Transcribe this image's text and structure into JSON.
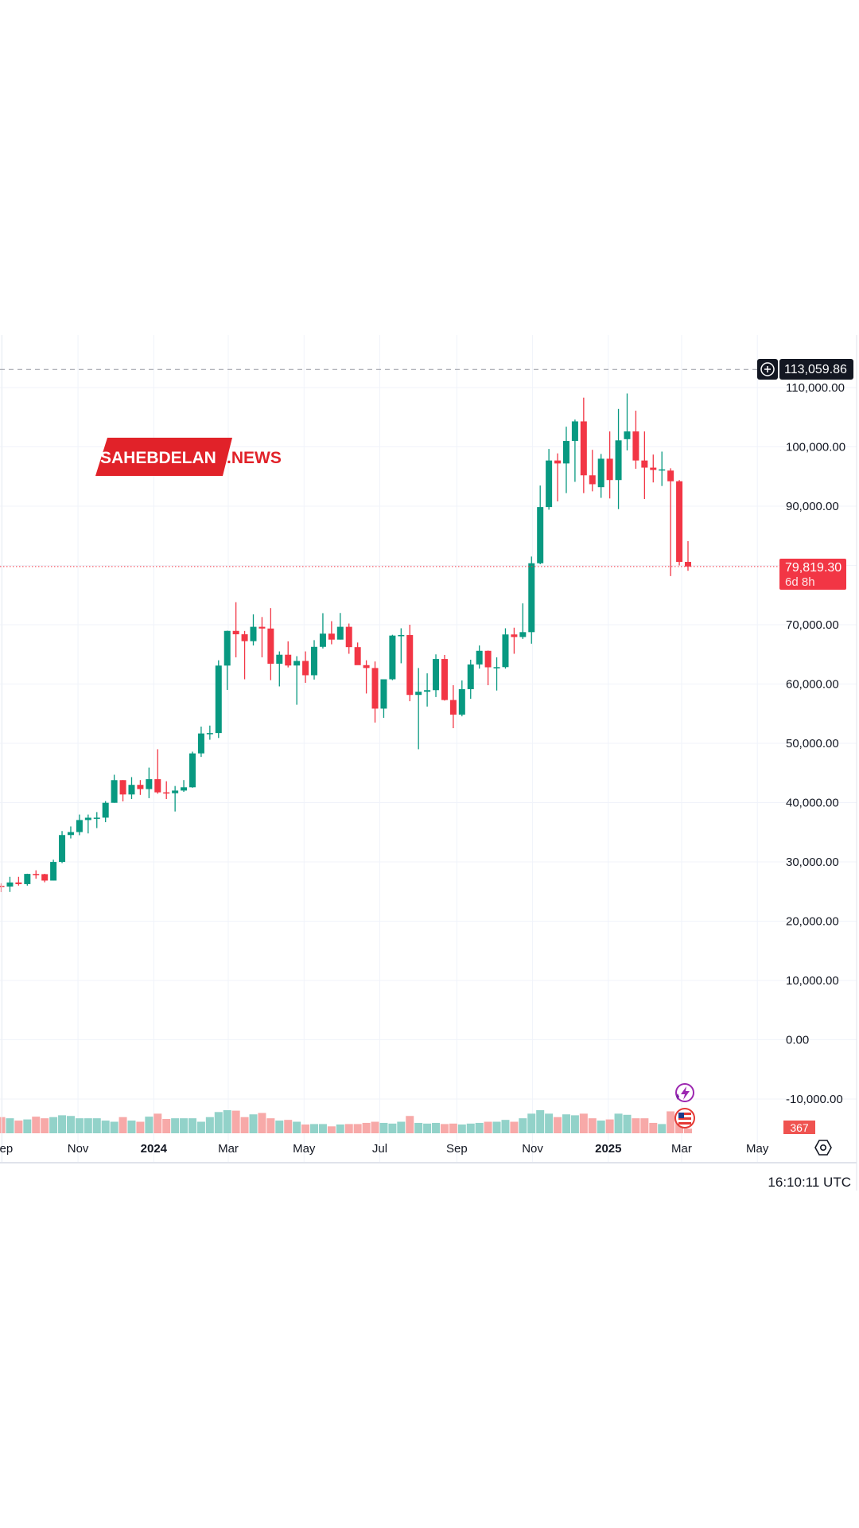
{
  "watermark": {
    "part1": "SAHEBDELAN",
    "part2": ".NEWS"
  },
  "colors": {
    "up": "#089981",
    "down": "#f23645",
    "up_volume": "#92d2c9",
    "down_volume": "#f7a9a8",
    "grid": "#f0f3fa",
    "accent_badge": "#f23645"
  },
  "price_line": {
    "high_label": "113,059.86",
    "high_value": 113059.86,
    "current_label": "79,819.30",
    "current_value": 79819.3,
    "countdown": "6d 8h"
  },
  "volume_label": "367",
  "timestamp": "16:10:11 UTC",
  "icons": [
    "plus-circle-icon",
    "lightning-icon",
    "us-flag-icon",
    "settings-icon"
  ],
  "chart_data": {
    "type": "candlestick",
    "title": "",
    "interval": "weekly",
    "ylim": [
      -15000,
      115000
    ],
    "y_ticks": [
      110000,
      100000,
      90000,
      80000,
      70000,
      60000,
      50000,
      40000,
      30000,
      20000,
      10000,
      0,
      -10000
    ],
    "y_tick_labels": [
      "110,000.00",
      "100,000.00",
      "90,000.00",
      "",
      "70,000.00",
      "60,000.00",
      "50,000.00",
      "40,000.00",
      "30,000.00",
      "20,000.00",
      "10,000.00",
      "0.00",
      "-10,000.00"
    ],
    "x_ticks": [
      {
        "date": "2023-09-01",
        "label": "Sep",
        "year": false
      },
      {
        "date": "2023-11-01",
        "label": "Nov",
        "year": false
      },
      {
        "date": "2024-01-01",
        "label": "2024",
        "year": true
      },
      {
        "date": "2024-03-01",
        "label": "Mar",
        "year": false
      },
      {
        "date": "2024-05-01",
        "label": "May",
        "year": false
      },
      {
        "date": "2024-07-01",
        "label": "Jul",
        "year": false
      },
      {
        "date": "2024-09-01",
        "label": "Sep",
        "year": false
      },
      {
        "date": "2024-11-01",
        "label": "Nov",
        "year": false
      },
      {
        "date": "2025-01-01",
        "label": "2025",
        "year": true
      },
      {
        "date": "2025-03-01",
        "label": "Mar",
        "year": false
      },
      {
        "date": "2025-05-01",
        "label": "May",
        "year": false
      }
    ],
    "grid": true,
    "candles": [
      {
        "d": "2023-09-04",
        "o": 25970,
        "h": 26400,
        "l": 24900,
        "c": 25840,
        "v": 70
      },
      {
        "d": "2023-09-11",
        "o": 25840,
        "h": 27480,
        "l": 24930,
        "c": 26530,
        "v": 65
      },
      {
        "d": "2023-09-18",
        "o": 26530,
        "h": 27480,
        "l": 26000,
        "c": 26250,
        "v": 55
      },
      {
        "d": "2023-09-25",
        "o": 26250,
        "h": 28000,
        "l": 26000,
        "c": 27970,
        "v": 60
      },
      {
        "d": "2023-10-02",
        "o": 27970,
        "h": 28580,
        "l": 27160,
        "c": 27930,
        "v": 72
      },
      {
        "d": "2023-10-09",
        "o": 27930,
        "h": 27990,
        "l": 26560,
        "c": 26850,
        "v": 65
      },
      {
        "d": "2023-10-16",
        "o": 26850,
        "h": 30370,
        "l": 26850,
        "c": 29990,
        "v": 70
      },
      {
        "d": "2023-10-23",
        "o": 29990,
        "h": 35200,
        "l": 29800,
        "c": 34530,
        "v": 78
      },
      {
        "d": "2023-10-30",
        "o": 34530,
        "h": 35980,
        "l": 33950,
        "c": 35030,
        "v": 75
      },
      {
        "d": "2023-11-06",
        "o": 35030,
        "h": 37980,
        "l": 34500,
        "c": 37060,
        "v": 65
      },
      {
        "d": "2023-11-13",
        "o": 37060,
        "h": 37980,
        "l": 34800,
        "c": 37450,
        "v": 65
      },
      {
        "d": "2023-11-20",
        "o": 37450,
        "h": 38400,
        "l": 35700,
        "c": 37460,
        "v": 65
      },
      {
        "d": "2023-11-27",
        "o": 37460,
        "h": 40250,
        "l": 36700,
        "c": 39970,
        "v": 55
      },
      {
        "d": "2023-12-04",
        "o": 39970,
        "h": 44700,
        "l": 39970,
        "c": 43790,
        "v": 50
      },
      {
        "d": "2023-12-11",
        "o": 43790,
        "h": 43800,
        "l": 40200,
        "c": 41370,
        "v": 70
      },
      {
        "d": "2023-12-18",
        "o": 41370,
        "h": 44300,
        "l": 40600,
        "c": 42990,
        "v": 55
      },
      {
        "d": "2023-12-25",
        "o": 42990,
        "h": 43800,
        "l": 41300,
        "c": 42280,
        "v": 50
      },
      {
        "d": "2024-01-01",
        "o": 42280,
        "h": 45900,
        "l": 40750,
        "c": 43950,
        "v": 72
      },
      {
        "d": "2024-01-08",
        "o": 43950,
        "h": 49000,
        "l": 41500,
        "c": 41730,
        "v": 85
      },
      {
        "d": "2024-01-15",
        "o": 41730,
        "h": 43600,
        "l": 40600,
        "c": 41580,
        "v": 62
      },
      {
        "d": "2024-01-22",
        "o": 41580,
        "h": 42800,
        "l": 38500,
        "c": 42030,
        "v": 65
      },
      {
        "d": "2024-01-29",
        "o": 42030,
        "h": 43800,
        "l": 41800,
        "c": 42580,
        "v": 65
      },
      {
        "d": "2024-02-05",
        "o": 42580,
        "h": 48590,
        "l": 42500,
        "c": 48300,
        "v": 65
      },
      {
        "d": "2024-02-12",
        "o": 48300,
        "h": 52820,
        "l": 47700,
        "c": 51660,
        "v": 50
      },
      {
        "d": "2024-02-19",
        "o": 51660,
        "h": 52990,
        "l": 50600,
        "c": 51730,
        "v": 70
      },
      {
        "d": "2024-02-26",
        "o": 51730,
        "h": 64000,
        "l": 50900,
        "c": 63110,
        "v": 92
      },
      {
        "d": "2024-03-04",
        "o": 63110,
        "h": 69000,
        "l": 59000,
        "c": 68960,
        "v": 100
      },
      {
        "d": "2024-03-11",
        "o": 68960,
        "h": 73800,
        "l": 64500,
        "c": 68390,
        "v": 98
      },
      {
        "d": "2024-03-18",
        "o": 68390,
        "h": 68950,
        "l": 60800,
        "c": 67230,
        "v": 70
      },
      {
        "d": "2024-03-25",
        "o": 67230,
        "h": 71750,
        "l": 66500,
        "c": 69650,
        "v": 82
      },
      {
        "d": "2024-04-01",
        "o": 69650,
        "h": 71300,
        "l": 64500,
        "c": 69360,
        "v": 88
      },
      {
        "d": "2024-04-08",
        "o": 69360,
        "h": 72800,
        "l": 60650,
        "c": 63420,
        "v": 65
      },
      {
        "d": "2024-04-15",
        "o": 63420,
        "h": 65500,
        "l": 59600,
        "c": 64940,
        "v": 55
      },
      {
        "d": "2024-04-22",
        "o": 64940,
        "h": 67200,
        "l": 62800,
        "c": 63120,
        "v": 58
      },
      {
        "d": "2024-04-29",
        "o": 63120,
        "h": 64700,
        "l": 56500,
        "c": 63890,
        "v": 50
      },
      {
        "d": "2024-05-06",
        "o": 63890,
        "h": 65500,
        "l": 60200,
        "c": 61480,
        "v": 38
      },
      {
        "d": "2024-05-13",
        "o": 61480,
        "h": 67400,
        "l": 60750,
        "c": 66270,
        "v": 40
      },
      {
        "d": "2024-05-20",
        "o": 66270,
        "h": 71950,
        "l": 66000,
        "c": 68500,
        "v": 40
      },
      {
        "d": "2024-05-27",
        "o": 68500,
        "h": 70600,
        "l": 66700,
        "c": 67490,
        "v": 30
      },
      {
        "d": "2024-06-03",
        "o": 67490,
        "h": 71980,
        "l": 67500,
        "c": 69650,
        "v": 38
      },
      {
        "d": "2024-06-10",
        "o": 69650,
        "h": 70200,
        "l": 65100,
        "c": 66220,
        "v": 40
      },
      {
        "d": "2024-06-17",
        "o": 66220,
        "h": 67000,
        "l": 63400,
        "c": 63180,
        "v": 40
      },
      {
        "d": "2024-06-24",
        "o": 63180,
        "h": 64000,
        "l": 58400,
        "c": 62700,
        "v": 45
      },
      {
        "d": "2024-07-01",
        "o": 62700,
        "h": 63800,
        "l": 53500,
        "c": 55850,
        "v": 50
      },
      {
        "d": "2024-07-08",
        "o": 55850,
        "h": 60600,
        "l": 54300,
        "c": 60800,
        "v": 45
      },
      {
        "d": "2024-07-15",
        "o": 60800,
        "h": 68300,
        "l": 60650,
        "c": 68170,
        "v": 42
      },
      {
        "d": "2024-07-22",
        "o": 68170,
        "h": 69400,
        "l": 63500,
        "c": 68260,
        "v": 50
      },
      {
        "d": "2024-07-29",
        "o": 68260,
        "h": 70000,
        "l": 57100,
        "c": 58160,
        "v": 75
      },
      {
        "d": "2024-08-05",
        "o": 58160,
        "h": 62700,
        "l": 49000,
        "c": 58700,
        "v": 45
      },
      {
        "d": "2024-08-12",
        "o": 58700,
        "h": 61800,
        "l": 56200,
        "c": 58960,
        "v": 42
      },
      {
        "d": "2024-08-19",
        "o": 58960,
        "h": 65000,
        "l": 57800,
        "c": 64220,
        "v": 45
      },
      {
        "d": "2024-08-26",
        "o": 64220,
        "h": 64900,
        "l": 57200,
        "c": 57300,
        "v": 40
      },
      {
        "d": "2024-09-02",
        "o": 57300,
        "h": 59800,
        "l": 52550,
        "c": 54840,
        "v": 42
      },
      {
        "d": "2024-09-09",
        "o": 54840,
        "h": 60600,
        "l": 54550,
        "c": 59130,
        "v": 38
      },
      {
        "d": "2024-09-16",
        "o": 59130,
        "h": 64100,
        "l": 57500,
        "c": 63300,
        "v": 42
      },
      {
        "d": "2024-09-23",
        "o": 63300,
        "h": 66500,
        "l": 62600,
        "c": 65600,
        "v": 45
      },
      {
        "d": "2024-09-30",
        "o": 65600,
        "h": 65650,
        "l": 59800,
        "c": 62820,
        "v": 50
      },
      {
        "d": "2024-10-07",
        "o": 62820,
        "h": 64500,
        "l": 58900,
        "c": 62850,
        "v": 50
      },
      {
        "d": "2024-10-14",
        "o": 62850,
        "h": 69400,
        "l": 62600,
        "c": 68360,
        "v": 58
      },
      {
        "d": "2024-10-21",
        "o": 68360,
        "h": 69500,
        "l": 65100,
        "c": 67930,
        "v": 50
      },
      {
        "d": "2024-10-28",
        "o": 67930,
        "h": 73600,
        "l": 67600,
        "c": 68750,
        "v": 65
      },
      {
        "d": "2024-11-04",
        "o": 68750,
        "h": 81500,
        "l": 66800,
        "c": 80370,
        "v": 85
      },
      {
        "d": "2024-11-11",
        "o": 80370,
        "h": 93480,
        "l": 80200,
        "c": 89850,
        "v": 100
      },
      {
        "d": "2024-11-18",
        "o": 89850,
        "h": 99650,
        "l": 89400,
        "c": 97700,
        "v": 85
      },
      {
        "d": "2024-11-25",
        "o": 97700,
        "h": 98900,
        "l": 90800,
        "c": 97200,
        "v": 70
      },
      {
        "d": "2024-12-02",
        "o": 97200,
        "h": 103400,
        "l": 92200,
        "c": 101000,
        "v": 82
      },
      {
        "d": "2024-12-09",
        "o": 101000,
        "h": 104600,
        "l": 94100,
        "c": 104300,
        "v": 78
      },
      {
        "d": "2024-12-16",
        "o": 104300,
        "h": 108300,
        "l": 92200,
        "c": 95200,
        "v": 85
      },
      {
        "d": "2024-12-23",
        "o": 95200,
        "h": 99500,
        "l": 92500,
        "c": 93700,
        "v": 65
      },
      {
        "d": "2024-12-30",
        "o": 93200,
        "h": 98800,
        "l": 91400,
        "c": 98000,
        "v": 55
      },
      {
        "d": "2025-01-06",
        "o": 98000,
        "h": 102600,
        "l": 91300,
        "c": 94400,
        "v": 60
      },
      {
        "d": "2025-01-13",
        "o": 94400,
        "h": 106400,
        "l": 89500,
        "c": 101100,
        "v": 85
      },
      {
        "d": "2025-01-20",
        "o": 101300,
        "h": 109000,
        "l": 99400,
        "c": 102600,
        "v": 80
      },
      {
        "d": "2025-01-27",
        "o": 102600,
        "h": 106100,
        "l": 96300,
        "c": 97700,
        "v": 65
      },
      {
        "d": "2025-02-03",
        "o": 97700,
        "h": 102600,
        "l": 91200,
        "c": 96500,
        "v": 65
      },
      {
        "d": "2025-02-10",
        "o": 96500,
        "h": 98700,
        "l": 94000,
        "c": 96100,
        "v": 45
      },
      {
        "d": "2025-02-17",
        "o": 96100,
        "h": 99200,
        "l": 93400,
        "c": 96200,
        "v": 40
      },
      {
        "d": "2025-02-24",
        "o": 96000,
        "h": 96400,
        "l": 78200,
        "c": 94200,
        "v": 95
      },
      {
        "d": "2025-03-03",
        "o": 94200,
        "h": 94400,
        "l": 80000,
        "c": 80600,
        "v": 60
      },
      {
        "d": "2025-03-10",
        "o": 80600,
        "h": 84100,
        "l": 79100,
        "c": 79819.3,
        "v": 20
      }
    ]
  }
}
